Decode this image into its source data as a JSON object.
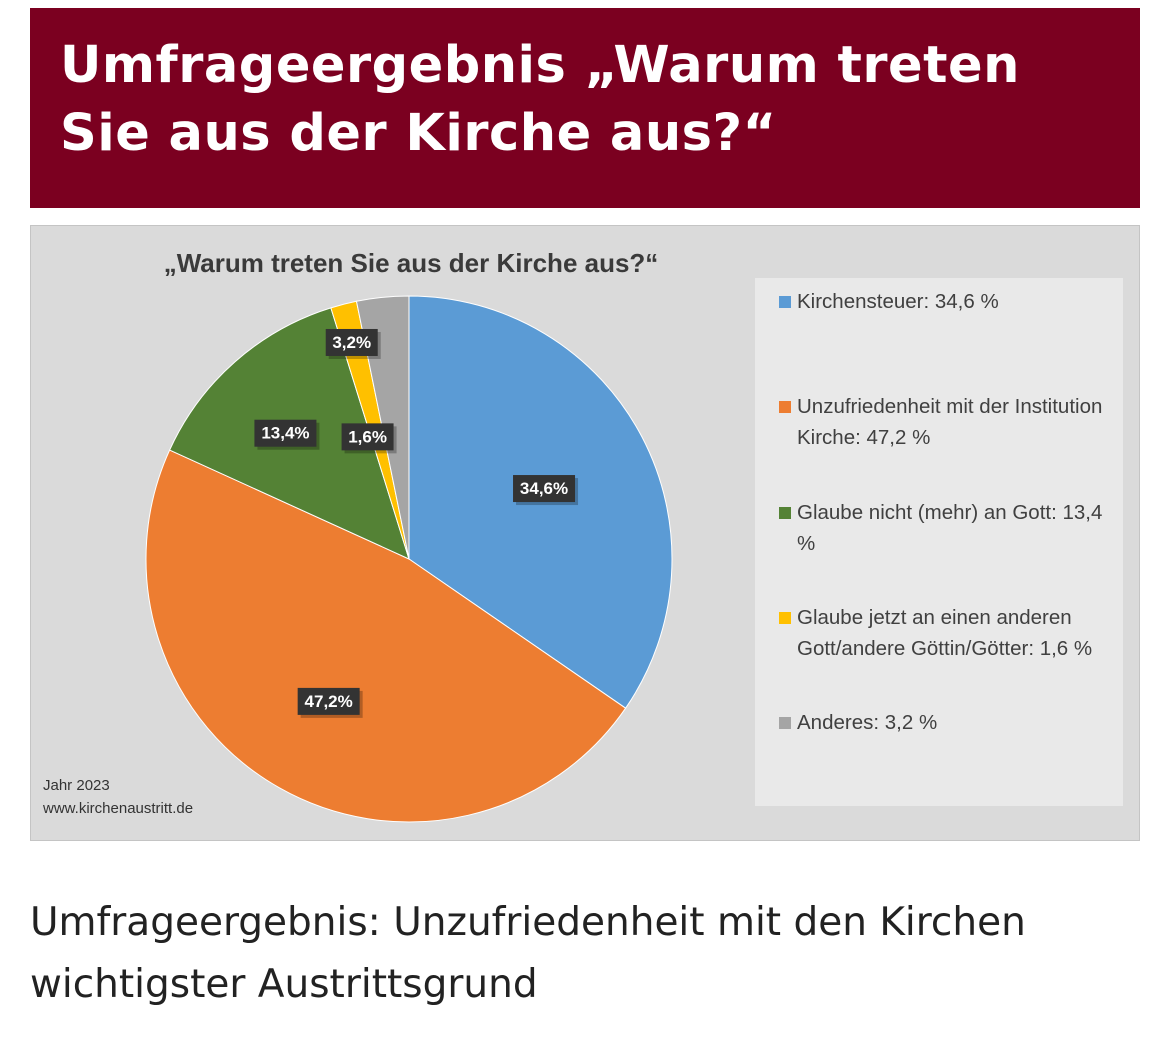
{
  "header": {
    "title": "Umfrageergebnis „Warum treten Sie aus der Kirche aus?“"
  },
  "chart_data": {
    "type": "pie",
    "title": "„Warum treten Sie aus der Kirche aus?“",
    "slices": [
      {
        "label": "Kirchensteuer",
        "value": 34.6,
        "data_label": "34,6%",
        "legend": "Kirchensteuer: 34,6 %",
        "color": "#5b9bd5"
      },
      {
        "label": "Unzufriedenheit mit der Institution Kirche",
        "value": 47.2,
        "data_label": "47,2%",
        "legend": "Unzufriedenheit mit der Institution Kirche: 47,2 %",
        "color": "#ed7d31"
      },
      {
        "label": "Glaube nicht (mehr) an Gott",
        "value": 13.4,
        "data_label": "13,4%",
        "legend": "Glaube nicht (mehr) an Gott: 13,4 %",
        "color": "#548235"
      },
      {
        "label": "Glaube jetzt an einen anderen Gott/andere Göttin/Götter",
        "value": 1.6,
        "data_label": "1,6%",
        "legend": "Glaube jetzt an einen anderen Gott/andere Göttin/Götter: 1,6 %",
        "color": "#ffc000"
      },
      {
        "label": "Anderes",
        "value": 3.2,
        "data_label": "3,2%",
        "legend": "Anderes: 3,2 %",
        "color": "#a5a5a5"
      }
    ],
    "legend_position": "right"
  },
  "footnote": {
    "year": "Jahr 2023",
    "source": "www.kirchenaustritt.de"
  },
  "caption": "Umfrageergebnis: Unzufriedenheit mit den Kirchen wichtigster Austrittsgrund",
  "colors": {
    "header_bg": "#7b0020",
    "figure_bg": "#dadada",
    "legend_bg": "#e9e9e9",
    "label_bg": "#333333"
  }
}
